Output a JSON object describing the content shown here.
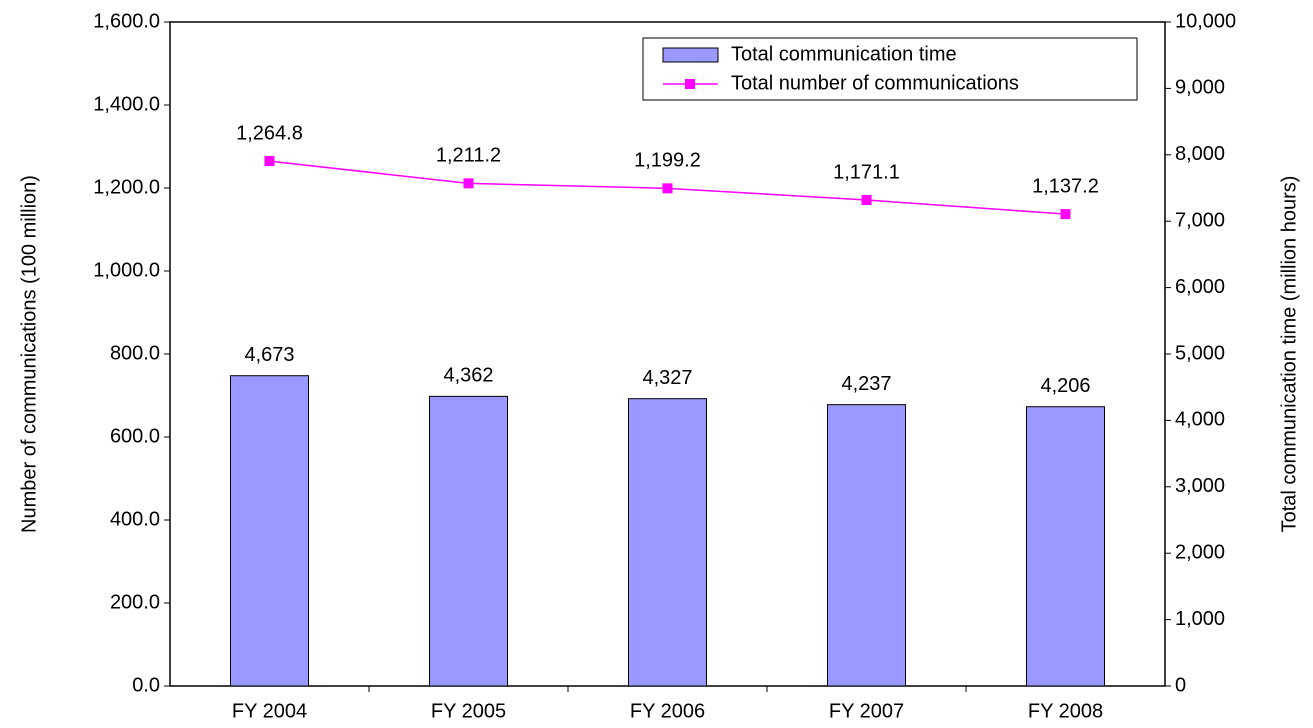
{
  "chart_data": {
    "type": "bar_line",
    "categories": [
      "FY 2004",
      "FY 2005",
      "FY 2006",
      "FY 2007",
      "FY 2008"
    ],
    "ylabel": "Number of communications (100 million)",
    "y2label": "Total communication time (million hours)",
    "series": [
      {
        "name": "Total communication time",
        "type": "bar",
        "axis": "y2",
        "color": "#9999ff",
        "values": [
          4673,
          4362,
          4327,
          4237,
          4206
        ],
        "value_labels": [
          "4,673",
          "4,362",
          "4,327",
          "4,237",
          "4,206"
        ]
      },
      {
        "name": "Total number of communications",
        "type": "line",
        "axis": "y",
        "color": "#ff00ff",
        "values": [
          1264.8,
          1211.2,
          1199.2,
          1171.1,
          1137.2
        ],
        "value_labels": [
          "1,264.8",
          "1,211.2",
          "1,199.2",
          "1,171.1",
          "1,137.2"
        ]
      }
    ],
    "ylim": [
      0,
      1600
    ],
    "yticks": [
      {
        "value": 0,
        "label": "0.0"
      },
      {
        "value": 200,
        "label": "200.0"
      },
      {
        "value": 400,
        "label": "400.0"
      },
      {
        "value": 600,
        "label": "600.0"
      },
      {
        "value": 800,
        "label": "800.0"
      },
      {
        "value": 1000,
        "label": "1,000.0"
      },
      {
        "value": 1200,
        "label": "1,200.0"
      },
      {
        "value": 1400,
        "label": "1,400.0"
      },
      {
        "value": 1600,
        "label": "1,600.0"
      }
    ],
    "y2lim": [
      0,
      10000
    ],
    "y2ticks": [
      0,
      {
        "value": 1000,
        "label": "1,000"
      },
      {
        "value": 2000,
        "label": "2,000"
      },
      {
        "value": 3000,
        "label": "3,000"
      },
      {
        "value": 4000,
        "label": "4,000"
      },
      {
        "value": 5000,
        "label": "5,000"
      },
      {
        "value": 6000,
        "label": "6,000"
      },
      {
        "value": 7000,
        "label": "7,000"
      },
      {
        "value": 8000,
        "label": "8,000"
      },
      {
        "value": 9000,
        "label": "9,000"
      },
      {
        "value": 10000,
        "label": "10,000"
      }
    ],
    "legend": "upper right"
  }
}
